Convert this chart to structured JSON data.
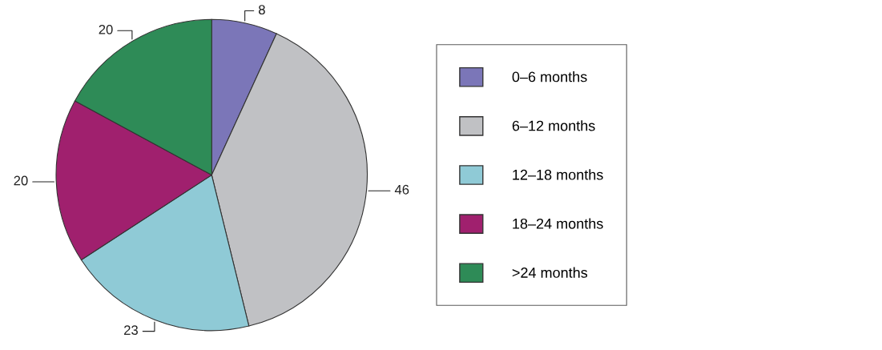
{
  "chart_data": {
    "type": "pie",
    "categories": [
      "0–6 months",
      "6–12 months",
      "12–18 months",
      "18–24 months",
      ">24 months"
    ],
    "values": [
      8,
      46,
      23,
      20,
      20
    ],
    "colors": [
      "#7b76b8",
      "#c0c1c4",
      "#8fcad6",
      "#a0206e",
      "#2e8b57"
    ],
    "data_labels": true,
    "legend": "right"
  }
}
